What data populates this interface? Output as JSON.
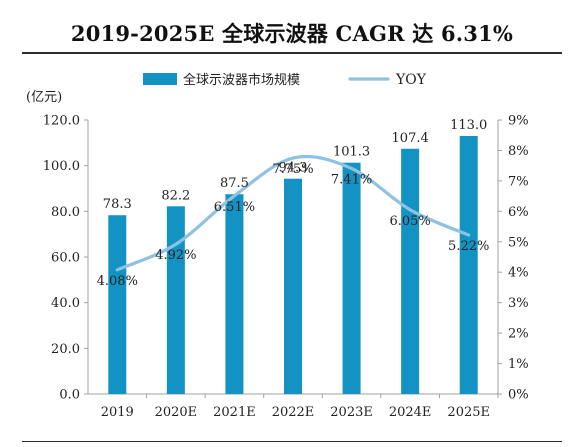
{
  "title": "2019-2025E 全球示波器 CAGR 达 6.31%",
  "colors": {
    "bar": "#1393c4",
    "line": "#8fc1e0",
    "axis": "#a0a0a0",
    "text": "#222222"
  },
  "chart_data": {
    "type": "bar",
    "title": "2019-2025E 全球示波器 CAGR 达 6.31%",
    "categories": [
      "2019",
      "2020E",
      "2021E",
      "2022E",
      "2023E",
      "2024E",
      "2025E"
    ],
    "series": [
      {
        "name": "全球示波器市场规模",
        "type": "bar",
        "axis": "left",
        "values": [
          78.3,
          82.2,
          87.5,
          94.3,
          101.3,
          107.4,
          113.0
        ],
        "labels": [
          "78.3",
          "82.2",
          "87.5",
          "94.3",
          "101.3",
          "107.4",
          "113.0"
        ]
      },
      {
        "name": "YOY",
        "type": "line",
        "axis": "right",
        "values": [
          4.08,
          4.92,
          6.51,
          7.75,
          7.41,
          6.05,
          5.22
        ],
        "labels": [
          "4.08%",
          "4.92%",
          "6.51%",
          "7.75%",
          "7.41%",
          "6.05%",
          "5.22%"
        ]
      }
    ],
    "ylabel": "(亿元)",
    "ylim": [
      0,
      120
    ],
    "y_ticks": [
      "0.0",
      "20.0",
      "40.0",
      "60.0",
      "80.0",
      "100.0",
      "120.0"
    ],
    "y2lim": [
      0,
      9
    ],
    "y2_ticks": [
      "0%",
      "1%",
      "2%",
      "3%",
      "4%",
      "5%",
      "6%",
      "7%",
      "8%",
      "9%"
    ],
    "legend": "top-center",
    "grid": false
  }
}
